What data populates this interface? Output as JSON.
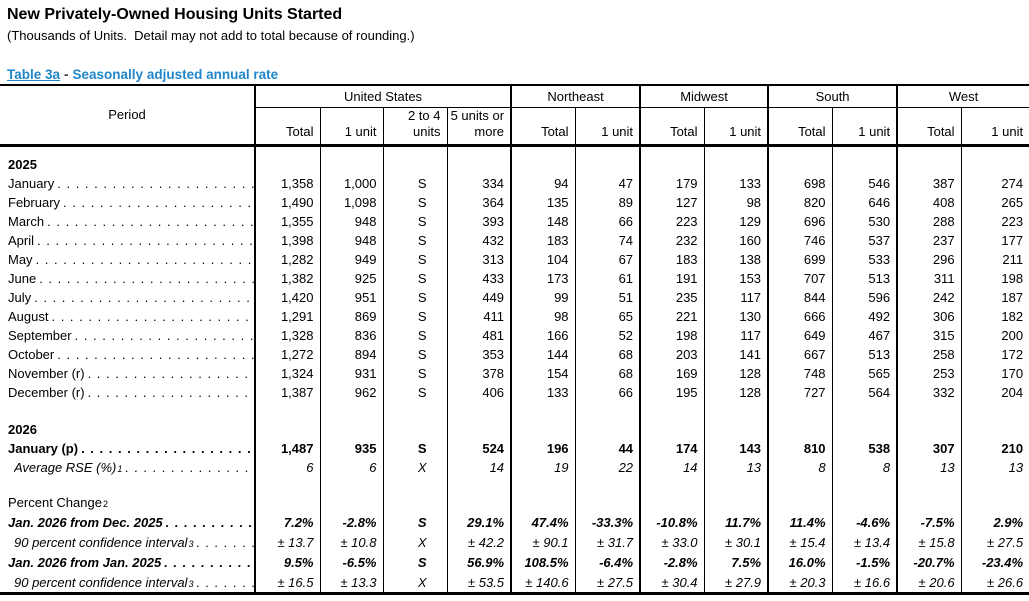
{
  "title": "New Privately-Owned Housing Units Started",
  "subtitle": "(Thousands of Units.  Detail may not add to total because of rounding.)",
  "caption": {
    "table_label": "Table 3a",
    "dash": "-",
    "text": "Seasonally adjusted annual rate"
  },
  "accent_color": "#1f86c9",
  "columns": {
    "period": "Period",
    "groups": [
      {
        "label": "United States",
        "cols": [
          "Total",
          "1 unit",
          "2 to 4 units",
          "5 units or more"
        ]
      },
      {
        "label": "Northeast",
        "cols": [
          "Total",
          "1 unit"
        ]
      },
      {
        "label": "Midwest",
        "cols": [
          "Total",
          "1 unit"
        ]
      },
      {
        "label": "South",
        "cols": [
          "Total",
          "1 unit"
        ]
      },
      {
        "label": "West",
        "cols": [
          "Total",
          "1 unit"
        ]
      }
    ]
  },
  "rows": [
    {
      "type": "year",
      "label": "2025"
    },
    {
      "type": "month",
      "label": "January",
      "values": [
        "1,358",
        "1,000",
        "S",
        "334",
        "94",
        "47",
        "179",
        "133",
        "698",
        "546",
        "387",
        "274"
      ]
    },
    {
      "type": "month",
      "label": "February",
      "values": [
        "1,490",
        "1,098",
        "S",
        "364",
        "135",
        "89",
        "127",
        "98",
        "820",
        "646",
        "408",
        "265"
      ]
    },
    {
      "type": "month",
      "label": "March",
      "values": [
        "1,355",
        "948",
        "S",
        "393",
        "148",
        "66",
        "223",
        "129",
        "696",
        "530",
        "288",
        "223"
      ]
    },
    {
      "type": "month",
      "label": "April",
      "values": [
        "1,398",
        "948",
        "S",
        "432",
        "183",
        "74",
        "232",
        "160",
        "746",
        "537",
        "237",
        "177"
      ]
    },
    {
      "type": "month",
      "label": "May",
      "values": [
        "1,282",
        "949",
        "S",
        "313",
        "104",
        "67",
        "183",
        "138",
        "699",
        "533",
        "296",
        "211"
      ]
    },
    {
      "type": "month",
      "label": "June",
      "values": [
        "1,382",
        "925",
        "S",
        "433",
        "173",
        "61",
        "191",
        "153",
        "707",
        "513",
        "311",
        "198"
      ]
    },
    {
      "type": "month",
      "label": "July",
      "values": [
        "1,420",
        "951",
        "S",
        "449",
        "99",
        "51",
        "235",
        "117",
        "844",
        "596",
        "242",
        "187"
      ]
    },
    {
      "type": "month",
      "label": "August",
      "values": [
        "1,291",
        "869",
        "S",
        "411",
        "98",
        "65",
        "221",
        "130",
        "666",
        "492",
        "306",
        "182"
      ]
    },
    {
      "type": "month",
      "label": "September",
      "values": [
        "1,328",
        "836",
        "S",
        "481",
        "166",
        "52",
        "198",
        "117",
        "649",
        "467",
        "315",
        "200"
      ]
    },
    {
      "type": "month",
      "label": "October",
      "values": [
        "1,272",
        "894",
        "S",
        "353",
        "144",
        "68",
        "203",
        "141",
        "667",
        "513",
        "258",
        "172"
      ]
    },
    {
      "type": "month",
      "label": "November (r)",
      "values": [
        "1,324",
        "931",
        "S",
        "378",
        "154",
        "68",
        "169",
        "128",
        "748",
        "565",
        "253",
        "170"
      ]
    },
    {
      "type": "month",
      "label": "December (r)",
      "values": [
        "1,387",
        "962",
        "S",
        "406",
        "133",
        "66",
        "195",
        "128",
        "727",
        "564",
        "332",
        "204"
      ]
    },
    {
      "type": "year",
      "label": "2026",
      "gap": true
    },
    {
      "type": "bold",
      "label": "January (p)",
      "values": [
        "1,487",
        "935",
        "S",
        "524",
        "196",
        "44",
        "174",
        "143",
        "810",
        "538",
        "307",
        "210"
      ]
    },
    {
      "type": "italic",
      "label": "Average RSE (%)",
      "sup": "1",
      "values": [
        "6",
        "6",
        "X",
        "14",
        "19",
        "22",
        "14",
        "13",
        "8",
        "8",
        "13",
        "13"
      ]
    },
    {
      "type": "plain",
      "label": "Percent Change",
      "sup": "2",
      "gap": true
    },
    {
      "type": "bolditalic",
      "label": "Jan. 2026 from Dec. 2025",
      "values": [
        "7.2%",
        "-2.8%",
        "S",
        "29.1%",
        "47.4%",
        "-33.3%",
        "-10.8%",
        "11.7%",
        "11.4%",
        "-4.6%",
        "-7.5%",
        "2.9%"
      ]
    },
    {
      "type": "italic",
      "label": "90 percent confidence interval",
      "sup": "3",
      "values": [
        "± 13.7",
        "± 10.8",
        "X",
        "± 42.2",
        "± 90.1",
        "± 31.7",
        "± 33.0",
        "± 30.1",
        "± 15.4",
        "± 13.4",
        "± 15.8",
        "± 27.5"
      ]
    },
    {
      "type": "bolditalic",
      "label": "Jan. 2026 from Jan. 2025",
      "values": [
        "9.5%",
        "-6.5%",
        "S",
        "56.9%",
        "108.5%",
        "-6.4%",
        "-2.8%",
        "7.5%",
        "16.0%",
        "-1.5%",
        "-20.7%",
        "-23.4%"
      ]
    },
    {
      "type": "italic",
      "label": "90 percent confidence interval",
      "sup": "3",
      "values": [
        "± 16.5",
        "± 13.3",
        "X",
        "± 53.5",
        "± 140.6",
        "± 27.5",
        "± 30.4",
        "± 27.9",
        "± 20.3",
        "± 16.6",
        "± 20.6",
        "± 26.6"
      ]
    }
  ]
}
